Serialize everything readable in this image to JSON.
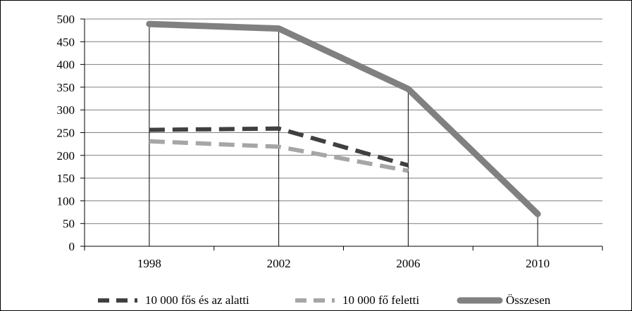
{
  "chart_data": {
    "type": "line",
    "categories": [
      "1998",
      "2002",
      "2006",
      "2010"
    ],
    "ylim": [
      0,
      500
    ],
    "yticks": [
      0,
      50,
      100,
      150,
      200,
      250,
      300,
      350,
      400,
      450,
      500
    ],
    "grid": true,
    "legend_position": "bottom",
    "series": [
      {
        "name": "10 000 fős és az alatti",
        "values": [
          256,
          259,
          178,
          null
        ],
        "color": "#404040",
        "style": "dashed-thick"
      },
      {
        "name": "10 000 fő feletti",
        "values": [
          231,
          219,
          166,
          null
        ],
        "color": "#a6a6a6",
        "style": "dashed-thick"
      },
      {
        "name": "Összesen",
        "values": [
          489,
          479,
          346,
          71
        ],
        "color": "#808080",
        "style": "solid-thick"
      }
    ]
  }
}
